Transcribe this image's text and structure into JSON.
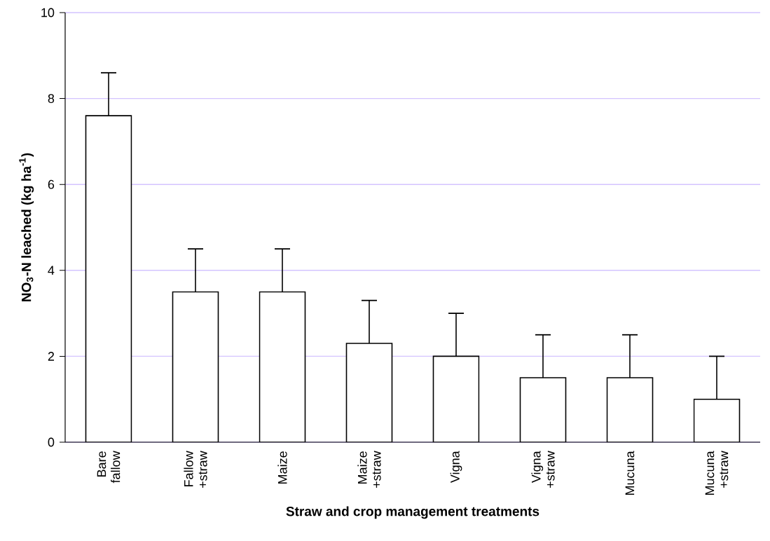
{
  "chart_data": {
    "type": "bar",
    "xlabel": "Straw and crop management treatments",
    "ylabel": "NO$_{3}$-N leached (kg ha$^{-1}$)",
    "categories": [
      "Bare fallow",
      "Fallow +straw",
      "Maize",
      "Maize +straw",
      "Vigna",
      "Vigna +straw",
      "Mucuna",
      "Mucuna +straw"
    ],
    "values": [
      7.6,
      3.5,
      3.5,
      2.3,
      2.0,
      1.5,
      1.5,
      1.0
    ],
    "errors": [
      [
        7.6,
        8.6
      ],
      [
        3.5,
        4.5
      ],
      [
        3.5,
        4.5
      ],
      [
        2.3,
        3.3
      ],
      [
        2.0,
        3.0
      ],
      [
        1.5,
        2.5
      ],
      [
        1.5,
        2.5
      ],
      [
        1.0,
        2.0
      ]
    ],
    "color": "#000000",
    "ylim": [
      0,
      10
    ],
    "yticks": [
      0,
      2,
      4,
      6,
      8,
      10
    ],
    "grid": "y"
  }
}
